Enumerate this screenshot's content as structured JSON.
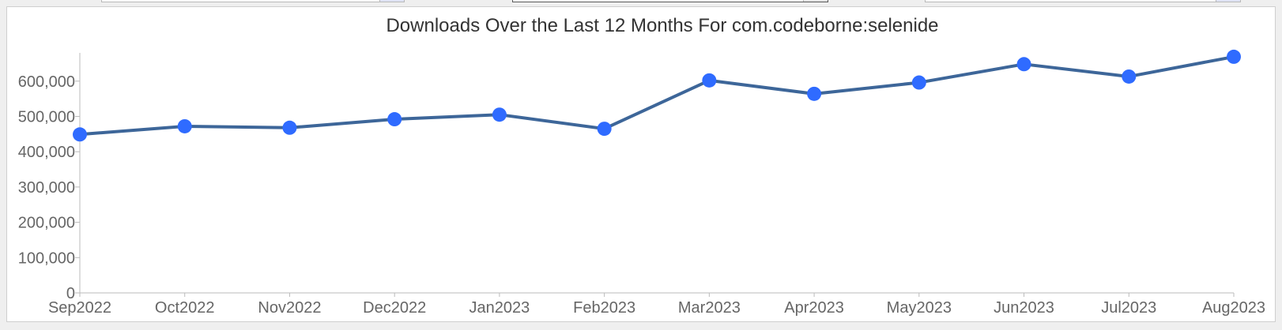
{
  "chart_data": {
    "type": "line",
    "title": "Downloads Over the Last 12 Months For com.codeborne:selenide",
    "xlabel": "",
    "ylabel": "",
    "categories": [
      "Sep2022",
      "Oct2022",
      "Nov2022",
      "Dec2022",
      "Jan2023",
      "Feb2023",
      "Mar2023",
      "Apr2023",
      "May2023",
      "Jun2023",
      "Jul2023",
      "Aug2023"
    ],
    "series": [
      {
        "values": [
          449000,
          472000,
          468000,
          492000,
          505000,
          465000,
          602000,
          564000,
          596000,
          648000,
          613000,
          669000
        ]
      }
    ],
    "ylim": [
      0,
      680000
    ],
    "yticks": [
      0,
      100000,
      200000,
      300000,
      400000,
      500000,
      600000
    ],
    "ytick_labels": [
      "0",
      "100,000",
      "200,000",
      "300,000",
      "400,000",
      "500,000",
      "600,000"
    ],
    "grid": false,
    "colors": {
      "line": "#3d6699",
      "marker": "#2f6bff",
      "axis": "#bbbbbb"
    }
  }
}
